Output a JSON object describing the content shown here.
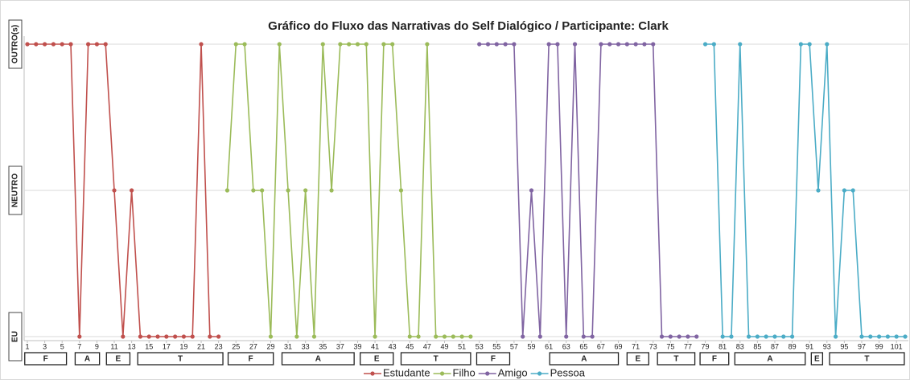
{
  "chart_data": {
    "type": "line",
    "title": "Gráfico do Fluxo das Narrativas do Self Dialógico / Participante: Clark",
    "xlim": [
      1,
      102
    ],
    "xticks": [
      1,
      3,
      5,
      7,
      9,
      11,
      13,
      15,
      17,
      19,
      21,
      23,
      25,
      27,
      29,
      31,
      33,
      35,
      37,
      39,
      41,
      43,
      45,
      47,
      49,
      51,
      53,
      55,
      57,
      59,
      61,
      63,
      65,
      67,
      69,
      71,
      73,
      75,
      77,
      79,
      81,
      83,
      85,
      87,
      89,
      91,
      93,
      95,
      97,
      99,
      101
    ],
    "ylim": [
      0,
      2
    ],
    "yticks": [
      {
        "value": 0,
        "label": "EU"
      },
      {
        "value": 1,
        "label": "NEUTRO"
      },
      {
        "value": 2,
        "label": "OUTRO(s)"
      }
    ],
    "grid": true,
    "legend": "bottom",
    "series": [
      {
        "name": "Estudante",
        "color": "#c0504d",
        "x": [
          1,
          2,
          3,
          4,
          5,
          6,
          7,
          8,
          9,
          10,
          11,
          12,
          13,
          14,
          15,
          16,
          17,
          18,
          19,
          20,
          21,
          22,
          23
        ],
        "values": [
          2,
          2,
          2,
          2,
          2,
          2,
          0,
          2,
          2,
          2,
          1,
          0,
          1,
          0,
          0,
          0,
          0,
          0,
          0,
          0,
          2,
          0,
          0
        ]
      },
      {
        "name": "Filho",
        "color": "#9bbb59",
        "x": [
          24,
          25,
          26,
          27,
          28,
          29,
          30,
          31,
          32,
          33,
          34,
          35,
          36,
          37,
          38,
          39,
          40,
          41,
          42,
          43,
          44,
          45,
          46,
          47,
          48,
          49,
          50,
          51,
          52
        ],
        "values": [
          1,
          2,
          2,
          1,
          1,
          0,
          2,
          1,
          0,
          1,
          0,
          2,
          1,
          2,
          2,
          2,
          2,
          0,
          2,
          2,
          1,
          0,
          0,
          2,
          0,
          0,
          0,
          0,
          0
        ]
      },
      {
        "name": "Amigo",
        "color": "#8064a2",
        "x": [
          53,
          54,
          55,
          56,
          57,
          58,
          59,
          60,
          61,
          62,
          63,
          64,
          65,
          66,
          67,
          68,
          69,
          70,
          71,
          72,
          73,
          74,
          75,
          76,
          77,
          78
        ],
        "values": [
          2,
          2,
          2,
          2,
          2,
          0,
          1,
          0,
          2,
          2,
          0,
          2,
          0,
          0,
          2,
          2,
          2,
          2,
          2,
          2,
          2,
          0,
          0,
          0,
          0,
          0
        ]
      },
      {
        "name": "Pessoa",
        "color": "#4bacc6",
        "x": [
          79,
          80,
          81,
          82,
          83,
          84,
          85,
          86,
          87,
          88,
          89,
          90,
          91,
          92,
          93,
          94,
          95,
          96,
          97,
          98,
          99,
          100,
          101,
          102
        ],
        "values": [
          2,
          2,
          0,
          0,
          2,
          0,
          0,
          0,
          0,
          0,
          0,
          2,
          2,
          1,
          2,
          0,
          1,
          1,
          0,
          0,
          0,
          0,
          0,
          0
        ]
      }
    ],
    "segments": [
      {
        "label": "F",
        "from": 0.7,
        "to": 5.5
      },
      {
        "label": "A",
        "from": 6.5,
        "to": 9.3
      },
      {
        "label": "E",
        "from": 10.1,
        "to": 12.8
      },
      {
        "label": "T",
        "from": 13.7,
        "to": 23.5
      },
      {
        "label": "F",
        "from": 24.1,
        "to": 29.3
      },
      {
        "label": "A",
        "from": 30.3,
        "to": 38.6
      },
      {
        "label": "E",
        "from": 39.3,
        "to": 43.1
      },
      {
        "label": "T",
        "from": 44.0,
        "to": 52.0
      },
      {
        "label": "F",
        "from": 52.7,
        "to": 56.5
      },
      {
        "label": "A",
        "from": 61.1,
        "to": 69.0
      },
      {
        "label": "E",
        "from": 70.0,
        "to": 72.5
      },
      {
        "label": "T",
        "from": 73.5,
        "to": 77.8
      },
      {
        "label": "F",
        "from": 78.4,
        "to": 81.7
      },
      {
        "label": "A",
        "from": 82.4,
        "to": 90.5
      },
      {
        "label": "E",
        "from": 91.2,
        "to": 92.5
      },
      {
        "label": "T",
        "from": 93.3,
        "to": 101.9
      }
    ]
  }
}
